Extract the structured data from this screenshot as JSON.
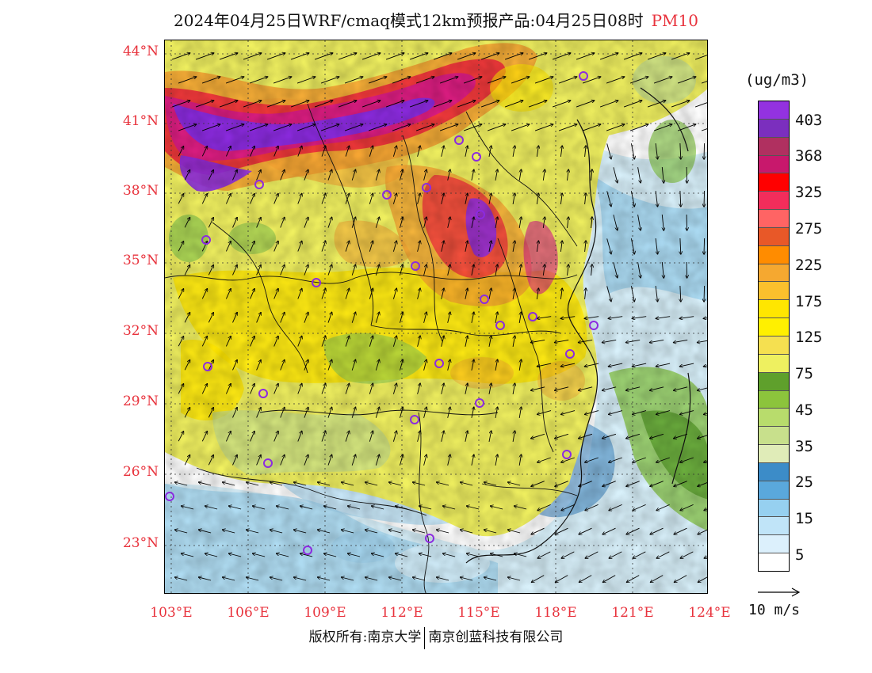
{
  "header": {
    "title": "2024年04月25日WRF/cmaq模式12km预报产品:04月25日08时",
    "pollutant": "PM10"
  },
  "map": {
    "lat_labels": [
      "44°N",
      "41°N",
      "38°N",
      "35°N",
      "32°N",
      "29°N",
      "26°N",
      "23°N"
    ],
    "lon_labels": [
      "103°E",
      "106°E",
      "109°E",
      "112°E",
      "115°E",
      "118°E",
      "121°E",
      "124°E"
    ],
    "colors": {
      "violet": "#8c2be0",
      "magenta": "#d81b8a",
      "red": "#f0243c",
      "orange": "#f5a030",
      "yellow": "#ffe600",
      "lightyellow": "#f0f060",
      "green": "#8cc850",
      "darkgreen": "#5aa02c",
      "lightgreen": "#c8e08c",
      "blue": "#4a90c8",
      "lightblue": "#a0d4f0",
      "paleblue": "#d8f0fa"
    }
  },
  "legend": {
    "unit": "(ug/m3)",
    "labels": [
      "403",
      "368",
      "325",
      "275",
      "225",
      "175",
      "125",
      "75",
      "45",
      "35",
      "25",
      "15",
      "5"
    ],
    "swatches": [
      "#9332e0",
      "#7b2fbe",
      "#b03060",
      "#c8186c",
      "#ff0000",
      "#f22d5b",
      "#ff6464",
      "#e85828",
      "#ff8c00",
      "#f5a830",
      "#fbc02d",
      "#ffe600",
      "#fff000",
      "#f5e050",
      "#eef060",
      "#5fa02c",
      "#8cc43c",
      "#b8dc6c",
      "#c8e08c",
      "#e0ecb8",
      "#3c8cc8",
      "#5aa8dc",
      "#96d0f0",
      "#c0e4f8",
      "#dcf0fc",
      "#ffffff"
    ]
  },
  "wind": {
    "label": "10 m/s"
  },
  "footer": {
    "left": "版权所有:南京大学",
    "right": "南京创蓝科技有限公司"
  }
}
